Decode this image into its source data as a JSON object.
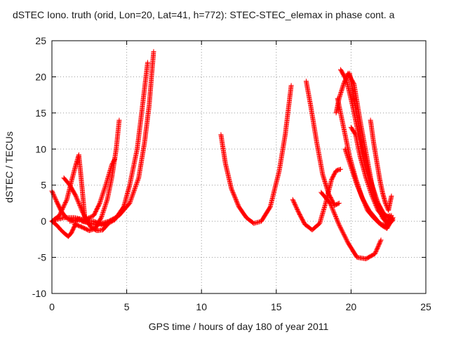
{
  "chart_data": {
    "type": "scatter",
    "title": "dSTEC Iono. truth (orid, Lon=20, Lat=41, h=772): STEC-STEC_elemax in phase cont. a",
    "xlabel": "GPS time / hours of day 180 of year 2011",
    "ylabel": "dSTEC  / TECUs",
    "xlim": [
      0,
      25
    ],
    "ylim": [
      -10,
      25
    ],
    "xticks": [
      "0",
      "5",
      "10",
      "15",
      "20",
      "25"
    ],
    "yticks": [
      "-10",
      "-5",
      "0",
      "5",
      "10",
      "15",
      "20",
      "25"
    ],
    "grid": true,
    "marker": "plus",
    "series_color": "#ff0000",
    "arcs": [
      {
        "x": [
          0.0,
          0.3,
          0.6,
          0.9,
          1.2,
          1.5,
          1.8,
          2.1,
          2.5
        ],
        "y": [
          4.2,
          2.8,
          1.5,
          0.6,
          0.2,
          0.1,
          0.3,
          0.0,
          -0.2
        ]
      },
      {
        "x": [
          0.0,
          0.3,
          0.6,
          0.9,
          1.1,
          1.3,
          1.6
        ],
        "y": [
          0.0,
          -0.5,
          -1.2,
          -1.8,
          -2.1,
          -1.6,
          -0.3
        ]
      },
      {
        "x": [
          0.0,
          0.5,
          1.0,
          1.3,
          1.6,
          1.8,
          2.0,
          2.2
        ],
        "y": [
          0.0,
          0.8,
          3.0,
          5.5,
          7.8,
          9.2,
          5.0,
          0.5
        ]
      },
      {
        "x": [
          0.8,
          1.2,
          1.6,
          2.0,
          2.3,
          2.6,
          3.0,
          3.4,
          3.7
        ],
        "y": [
          6.0,
          5.0,
          3.5,
          1.5,
          0.2,
          -0.8,
          -1.3,
          -1.2,
          -0.5
        ]
      },
      {
        "x": [
          0.2,
          0.8,
          1.5,
          2.2,
          2.8,
          3.2,
          3.6,
          4.0,
          4.2
        ],
        "y": [
          0.2,
          0.5,
          0.5,
          0.2,
          0.8,
          2.5,
          5.0,
          7.8,
          8.6
        ]
      },
      {
        "x": [
          1.5,
          2.0,
          2.5,
          2.9,
          3.3,
          3.7,
          4.0,
          4.3,
          4.5
        ],
        "y": [
          -0.4,
          -0.8,
          -1.3,
          -1.0,
          0.5,
          3.0,
          6.0,
          10.0,
          14.0
        ]
      },
      {
        "x": [
          1.2,
          2.0,
          2.8,
          3.5,
          4.2,
          4.8,
          5.2,
          5.7,
          6.0,
          6.4
        ],
        "y": [
          0.0,
          0.2,
          0.0,
          -0.6,
          0.2,
          2.0,
          5.0,
          10.0,
          15.0,
          22.0
        ]
      },
      {
        "x": [
          2.0,
          3.0,
          3.8,
          4.5,
          5.2,
          5.8,
          6.2,
          6.5,
          6.8
        ],
        "y": [
          0.0,
          -0.5,
          0.0,
          0.8,
          2.5,
          6.0,
          11.0,
          16.0,
          23.5
        ]
      },
      {
        "x": [
          11.3,
          11.6,
          12.0,
          12.5,
          13.0,
          13.5,
          14.0,
          14.6,
          15.2,
          15.6,
          16.0
        ],
        "y": [
          12.0,
          8.0,
          4.5,
          2.0,
          0.5,
          -0.3,
          0.0,
          2.0,
          7.0,
          12.0,
          18.8
        ]
      },
      {
        "x": [
          16.1,
          16.5,
          16.9,
          17.4,
          17.9,
          18.3,
          18.7,
          19.0,
          19.3
        ],
        "y": [
          3.0,
          1.2,
          -0.4,
          -1.2,
          -0.3,
          2.5,
          5.8,
          7.0,
          7.2
        ]
      },
      {
        "x": [
          17.0,
          17.3,
          17.7,
          18.1,
          18.5,
          18.9,
          19.2
        ],
        "y": [
          19.4,
          16.0,
          11.0,
          6.5,
          3.8,
          2.2,
          2.5
        ]
      },
      {
        "x": [
          18.0,
          18.6,
          19.2,
          19.8,
          20.4,
          21.0,
          21.6,
          22.0
        ],
        "y": [
          4.0,
          2.5,
          -0.5,
          -3.0,
          -5.0,
          -5.2,
          -4.5,
          -2.6
        ]
      },
      {
        "x": [
          19.0,
          19.2,
          19.5,
          19.8,
          20.2,
          20.6,
          21.0,
          21.4,
          21.8,
          22.2,
          22.6
        ],
        "y": [
          15.0,
          17.0,
          19.0,
          20.5,
          19.0,
          14.0,
          9.5,
          5.0,
          2.5,
          1.0,
          0.5
        ]
      },
      {
        "x": [
          19.3,
          19.7,
          20.1,
          20.5,
          20.9,
          21.3,
          21.7,
          22.1,
          22.5,
          22.8
        ],
        "y": [
          21.0,
          19.5,
          16.0,
          12.0,
          8.0,
          5.0,
          2.5,
          0.5,
          -0.5,
          0.5
        ]
      },
      {
        "x": [
          19.1,
          19.5,
          19.9,
          20.3,
          20.7,
          21.1,
          21.5,
          21.9,
          22.3,
          22.7
        ],
        "y": [
          17.0,
          13.0,
          9.0,
          6.0,
          3.5,
          1.5,
          0.5,
          -0.3,
          -0.6,
          0.8
        ]
      },
      {
        "x": [
          19.9,
          20.1,
          20.4,
          20.8,
          21.2,
          21.6,
          22.0,
          22.3,
          22.6
        ],
        "y": [
          20.5,
          18.0,
          14.5,
          10.0,
          6.5,
          3.5,
          1.5,
          0.5,
          0.8
        ]
      },
      {
        "x": [
          19.6,
          20.0,
          20.4,
          20.8,
          21.2,
          21.6,
          22.0,
          22.4,
          22.8
        ],
        "y": [
          10.0,
          7.5,
          5.0,
          3.0,
          1.5,
          0.5,
          -0.5,
          -1.0,
          0.5
        ]
      },
      {
        "x": [
          20.0,
          20.3,
          20.6,
          21.0,
          21.4,
          21.8,
          22.2,
          22.5,
          22.8
        ],
        "y": [
          13.0,
          12.0,
          9.0,
          6.0,
          3.5,
          1.5,
          0.5,
          -0.5,
          0.2
        ]
      },
      {
        "x": [
          21.3,
          21.5,
          21.7,
          21.9,
          22.1,
          22.3,
          22.5,
          22.7
        ],
        "y": [
          14.0,
          11.0,
          8.5,
          6.0,
          4.0,
          2.5,
          1.5,
          3.5
        ]
      }
    ]
  }
}
